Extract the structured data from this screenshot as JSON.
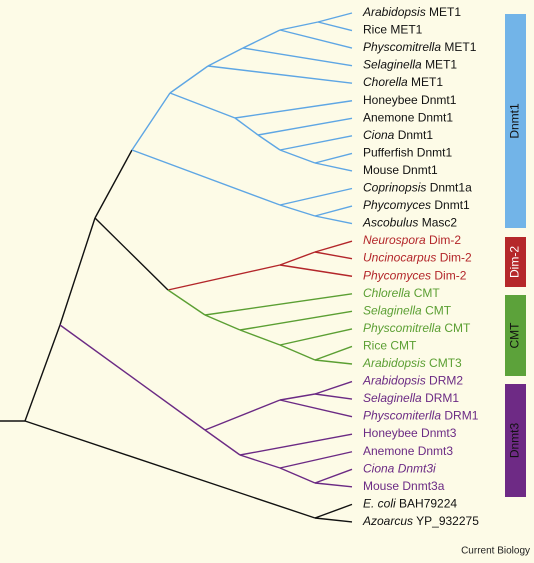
{
  "leaves": [
    {
      "italic": "Arabidopsis",
      "plain": "MET1"
    },
    {
      "plain": "Rice MET1"
    },
    {
      "italic": "Physcomitrella",
      "plain": "MET1"
    },
    {
      "italic": "Selaginella",
      "plain": "MET1"
    },
    {
      "italic": "Chorella",
      "plain": "MET1"
    },
    {
      "plain": "Honeybee Dnmt1"
    },
    {
      "plain": "Anemone Dnmt1"
    },
    {
      "italic": "Ciona",
      "plain": "Dnmt1"
    },
    {
      "plain": "Pufferfish Dnmt1"
    },
    {
      "plain": "Mouse Dnmt1"
    },
    {
      "italic": "Coprinopsis",
      "plain": "Dnmt1a"
    },
    {
      "italic": "Phycomyces",
      "plain": "Dnmt1"
    },
    {
      "italic": "Ascobulus",
      "plain": "Masc2"
    },
    {
      "italic": "Neurospora",
      "plain": "Dim-2"
    },
    {
      "italic": "Uncinocarpus",
      "plain": "Dim-2"
    },
    {
      "italic": "Phycomyces",
      "plain": "Dim-2"
    },
    {
      "italic": "Chlorella",
      "plain": "CMT"
    },
    {
      "italic": "Selaginella",
      "plain": "CMT"
    },
    {
      "italic": "Physcomitrella",
      "plain": "CMT"
    },
    {
      "plain": "Rice CMT"
    },
    {
      "italic": "Arabidopsis",
      "plain": "CMT3"
    },
    {
      "italic": "Arabidopsis",
      "plain": "DRM2"
    },
    {
      "italic": "Selaginella",
      "plain": "DRM1"
    },
    {
      "italic": "Physcomiterlla",
      "plain": "DRM1"
    },
    {
      "plain": "Honeybee Dnmt3"
    },
    {
      "plain": "Anemone Dnmt3"
    },
    {
      "italic": "Ciona Dnmt3i"
    },
    {
      "plain": "Mouse Dnmt3a"
    },
    {
      "italic": "E. coli",
      "plain": "BAH79224"
    },
    {
      "italic": "Azoarcus",
      "plain": "YP_932275"
    }
  ],
  "groups": [
    "Dnmt1",
    "Dim-2",
    "CMT",
    "Dnmt3"
  ],
  "credit": "Current Biology"
}
